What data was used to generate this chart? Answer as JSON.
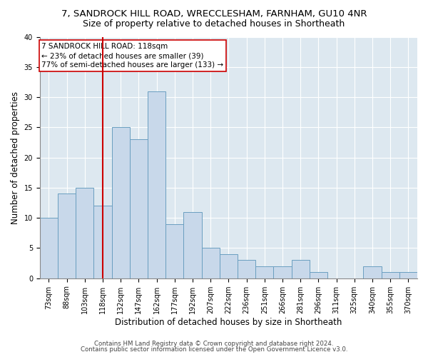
{
  "title1": "7, SANDROCK HILL ROAD, WRECCLESHAM, FARNHAM, GU10 4NR",
  "title2": "Size of property relative to detached houses in Shortheath",
  "xlabel": "Distribution of detached houses by size in Shortheath",
  "ylabel": "Number of detached properties",
  "categories": [
    "73sqm",
    "88sqm",
    "103sqm",
    "118sqm",
    "132sqm",
    "147sqm",
    "162sqm",
    "177sqm",
    "192sqm",
    "207sqm",
    "222sqm",
    "236sqm",
    "251sqm",
    "266sqm",
    "281sqm",
    "296sqm",
    "311sqm",
    "325sqm",
    "340sqm",
    "355sqm",
    "370sqm"
  ],
  "values": [
    10,
    14,
    15,
    12,
    25,
    23,
    31,
    9,
    11,
    5,
    4,
    3,
    2,
    2,
    3,
    1,
    0,
    0,
    2,
    1,
    1
  ],
  "bar_color": "#c8d8ea",
  "bar_edge_color": "#6a9fc0",
  "vline_x_index": 3,
  "vline_color": "#cc0000",
  "annotation_line1": "7 SANDROCK HILL ROAD: 118sqm",
  "annotation_line2": "← 23% of detached houses are smaller (39)",
  "annotation_line3": "77% of semi-detached houses are larger (133) →",
  "annotation_box_color": "#ffffff",
  "annotation_box_edge_color": "#cc0000",
  "ylim": [
    0,
    40
  ],
  "yticks": [
    0,
    5,
    10,
    15,
    20,
    25,
    30,
    35,
    40
  ],
  "bg_color": "#dde8f0",
  "footer1": "Contains HM Land Registry data © Crown copyright and database right 2024.",
  "footer2": "Contains public sector information licensed under the Open Government Licence v3.0.",
  "title_fontsize": 9.5,
  "subtitle_fontsize": 9,
  "axis_label_fontsize": 8.5,
  "tick_fontsize": 7,
  "annotation_fontsize": 7.5,
  "footer_fontsize": 6.2
}
